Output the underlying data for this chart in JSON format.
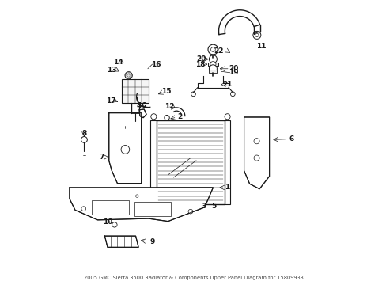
{
  "title": "2005 GMC Sierra 3500 Radiator & Components Upper Panel Diagram for 15809933",
  "bg_color": "#ffffff",
  "line_color": "#1a1a1a",
  "fig_width": 4.89,
  "fig_height": 3.6,
  "dpi": 100
}
